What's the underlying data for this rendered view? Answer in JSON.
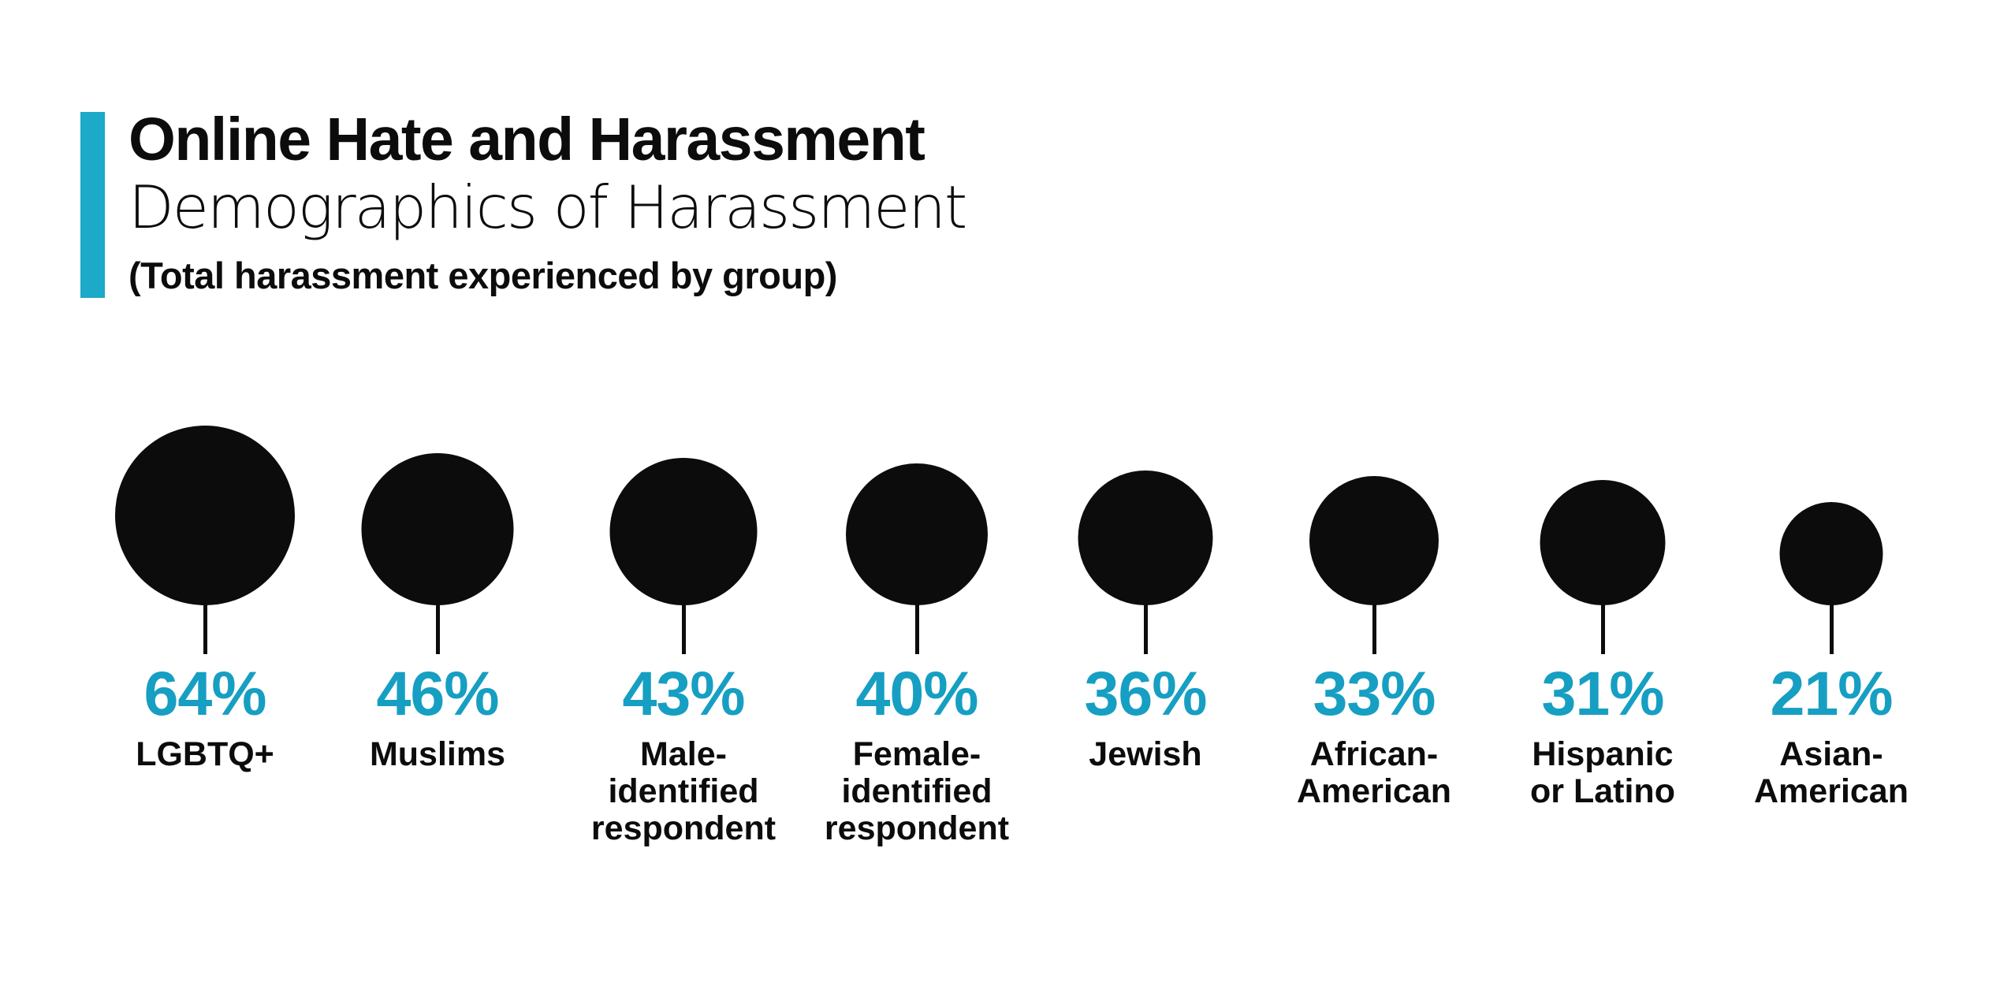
{
  "style": {
    "background": "#ffffff",
    "accent_bar_color": "#1caac8",
    "percent_color": "#169fc2",
    "ink_color": "#0c0c0c"
  },
  "chart_data": {
    "type": "bubble",
    "title": "Online Hate and Harassment",
    "subtitle": "Demographics of Harassment",
    "note": "(Total harassment experienced by group)",
    "value_unit": "%",
    "size_encoding": "circle area proportional to percentage, circles bottom-aligned with stem pointer to value",
    "legend": "none",
    "grid": "off",
    "categories": [
      "LGBTQ+",
      "Muslims",
      "Male-identified respondent",
      "Female-identified respondent",
      "Jewish",
      "African-American",
      "Hispanic or Latino",
      "Asian-American"
    ],
    "values": [
      64,
      46,
      43,
      40,
      36,
      33,
      31,
      21
    ],
    "groups": [
      {
        "value": 64,
        "pct": "64%",
        "label_lines": [
          "LGBTQ+"
        ]
      },
      {
        "value": 46,
        "pct": "46%",
        "label_lines": [
          "Muslims"
        ]
      },
      {
        "value": 43,
        "pct": "43%",
        "label_lines": [
          "Male-",
          "identified",
          "respondent"
        ]
      },
      {
        "value": 40,
        "pct": "40%",
        "label_lines": [
          "Female-",
          "identified",
          "respondent"
        ]
      },
      {
        "value": 36,
        "pct": "36%",
        "label_lines": [
          "Jewish"
        ]
      },
      {
        "value": 33,
        "pct": "33%",
        "label_lines": [
          "African-",
          "American"
        ]
      },
      {
        "value": 31,
        "pct": "31%",
        "label_lines": [
          "Hispanic",
          "or Latino"
        ]
      },
      {
        "value": 21,
        "pct": "21%",
        "label_lines": [
          "Asian-",
          "American"
        ]
      }
    ]
  }
}
